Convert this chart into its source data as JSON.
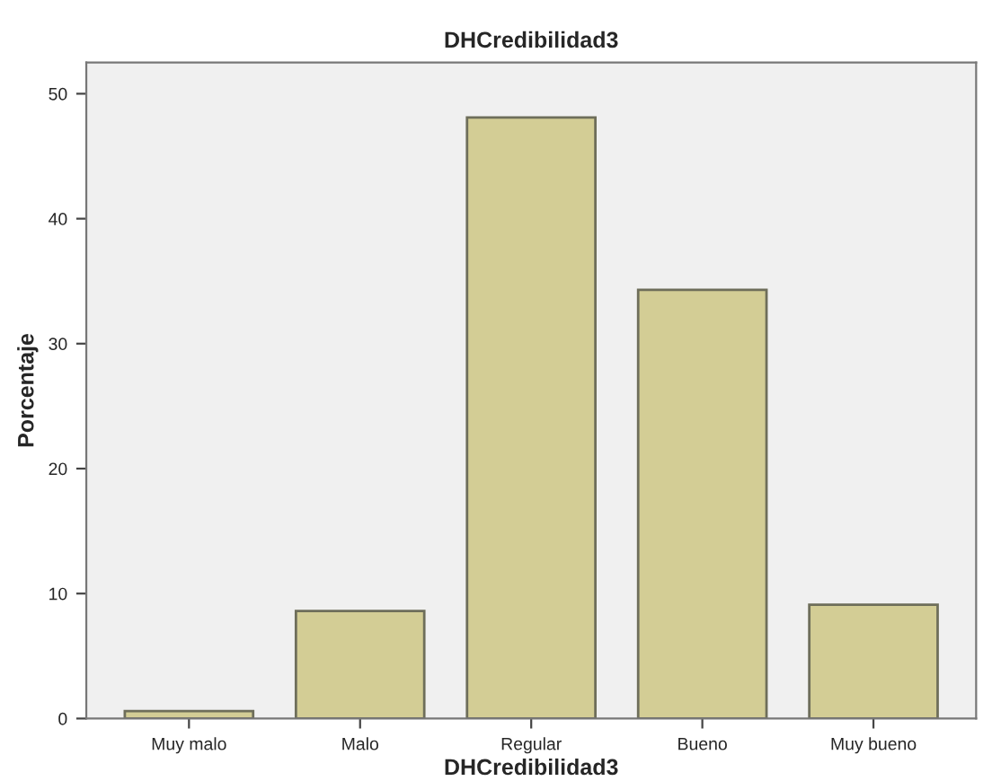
{
  "chart_data": {
    "type": "bar",
    "title": "DHCredibilidad3",
    "xlabel": "DHCredibilidad3",
    "ylabel": "Porcentaje",
    "categories": [
      "Muy malo",
      "Malo",
      "Regular",
      "Bueno",
      "Muy bueno"
    ],
    "values": [
      0.6,
      8.6,
      48.1,
      34.3,
      9.1
    ],
    "color": "#d3cd95",
    "ylim": [
      0,
      52.5
    ],
    "yticks": [
      0,
      10,
      20,
      30,
      40,
      50
    ],
    "grid": false
  }
}
